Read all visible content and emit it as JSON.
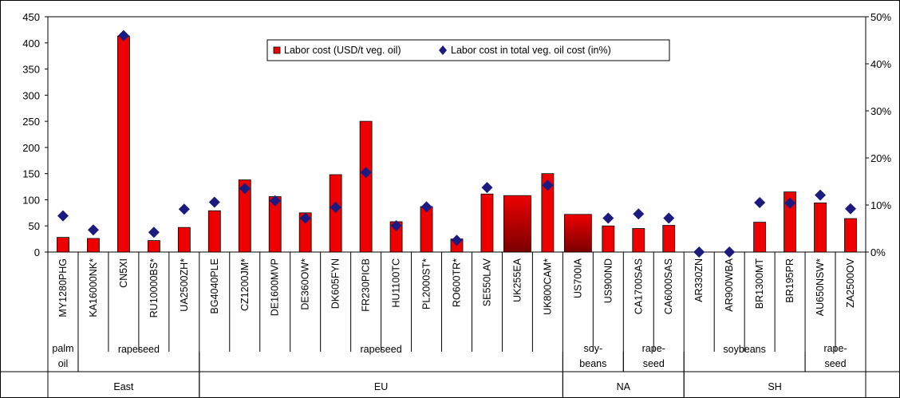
{
  "chart_data": {
    "type": "bar",
    "categories": [
      "MY1280PHG",
      "KA16000NK*",
      "CN5XI",
      "RU10000BS*",
      "UA2500ZH*",
      "BG4040PLE",
      "CZ1200JM*",
      "DE1600MVP",
      "DE360OW*",
      "DK605FYN",
      "FR230PICB",
      "HU1100TC",
      "PL2000ST*",
      "RO600TR*",
      "SE550LAV",
      "UK255EA",
      "UK800CAM*",
      "US700IA",
      "US900ND",
      "CA1700SAS",
      "CA6000SAS",
      "AR330ZN",
      "AR900WBA",
      "BR1300MT",
      "BR195PR",
      "AU650NSW*",
      "ZA2500OV"
    ],
    "series": [
      {
        "name": "Labor cost (USD/t veg. oil)",
        "axis": "left",
        "type": "bar",
        "values": [
          28,
          26,
          413,
          22,
          47,
          79,
          138,
          106,
          75,
          148,
          250,
          58,
          87,
          25,
          111,
          108,
          150,
          72,
          50,
          45,
          51,
          0,
          0,
          57,
          115,
          94,
          64
        ]
      },
      {
        "name": "Labor cost in total veg. oil cost (in%)",
        "axis": "right",
        "type": "scatter",
        "values": [
          7.7,
          4.7,
          46,
          4.2,
          9.1,
          10.6,
          13.5,
          10.9,
          7.2,
          9.5,
          16.9,
          5.6,
          9.6,
          2.5,
          13.7,
          null,
          14.2,
          null,
          7.2,
          8.1,
          7.2,
          0,
          0,
          10.5,
          10.4,
          12.1,
          9.2
        ]
      }
    ],
    "highlighted_bars": [
      "UK255EA",
      "US700IA"
    ],
    "ylim": [
      0,
      450
    ],
    "yticks": [
      "0",
      "50",
      "100",
      "150",
      "200",
      "250",
      "300",
      "350",
      "400",
      "450"
    ],
    "y2lim": [
      0,
      50
    ],
    "y2ticks": [
      "0%",
      "10%",
      "20%",
      "30%",
      "40%",
      "50%"
    ],
    "crop_groups": [
      {
        "label_lines": [
          "palm",
          "oil"
        ],
        "span": [
          0,
          0
        ]
      },
      {
        "label_lines": [
          "rapeseed"
        ],
        "span": [
          1,
          4
        ]
      },
      {
        "label_lines": [
          "rapeseed"
        ],
        "span": [
          5,
          16
        ]
      },
      {
        "label_lines": [
          "soy-",
          "beans"
        ],
        "span": [
          17,
          18
        ]
      },
      {
        "label_lines": [
          "rape-",
          "seed"
        ],
        "span": [
          19,
          20
        ]
      },
      {
        "label_lines": [
          "soybeans"
        ],
        "span": [
          21,
          24
        ]
      },
      {
        "label_lines": [
          "rape-",
          "seed"
        ],
        "span": [
          25,
          26
        ]
      }
    ],
    "region_groups": [
      {
        "label": "East",
        "span": [
          0,
          4
        ]
      },
      {
        "label": "EU",
        "span": [
          5,
          16
        ]
      },
      {
        "label": "NA",
        "span": [
          17,
          20
        ]
      },
      {
        "label": "SH",
        "span": [
          21,
          26
        ]
      }
    ],
    "legend_position": "top-center",
    "colors": {
      "bar": "#ee0000",
      "bar_dark": "#7a0000",
      "marker": "#1a1a80"
    }
  }
}
